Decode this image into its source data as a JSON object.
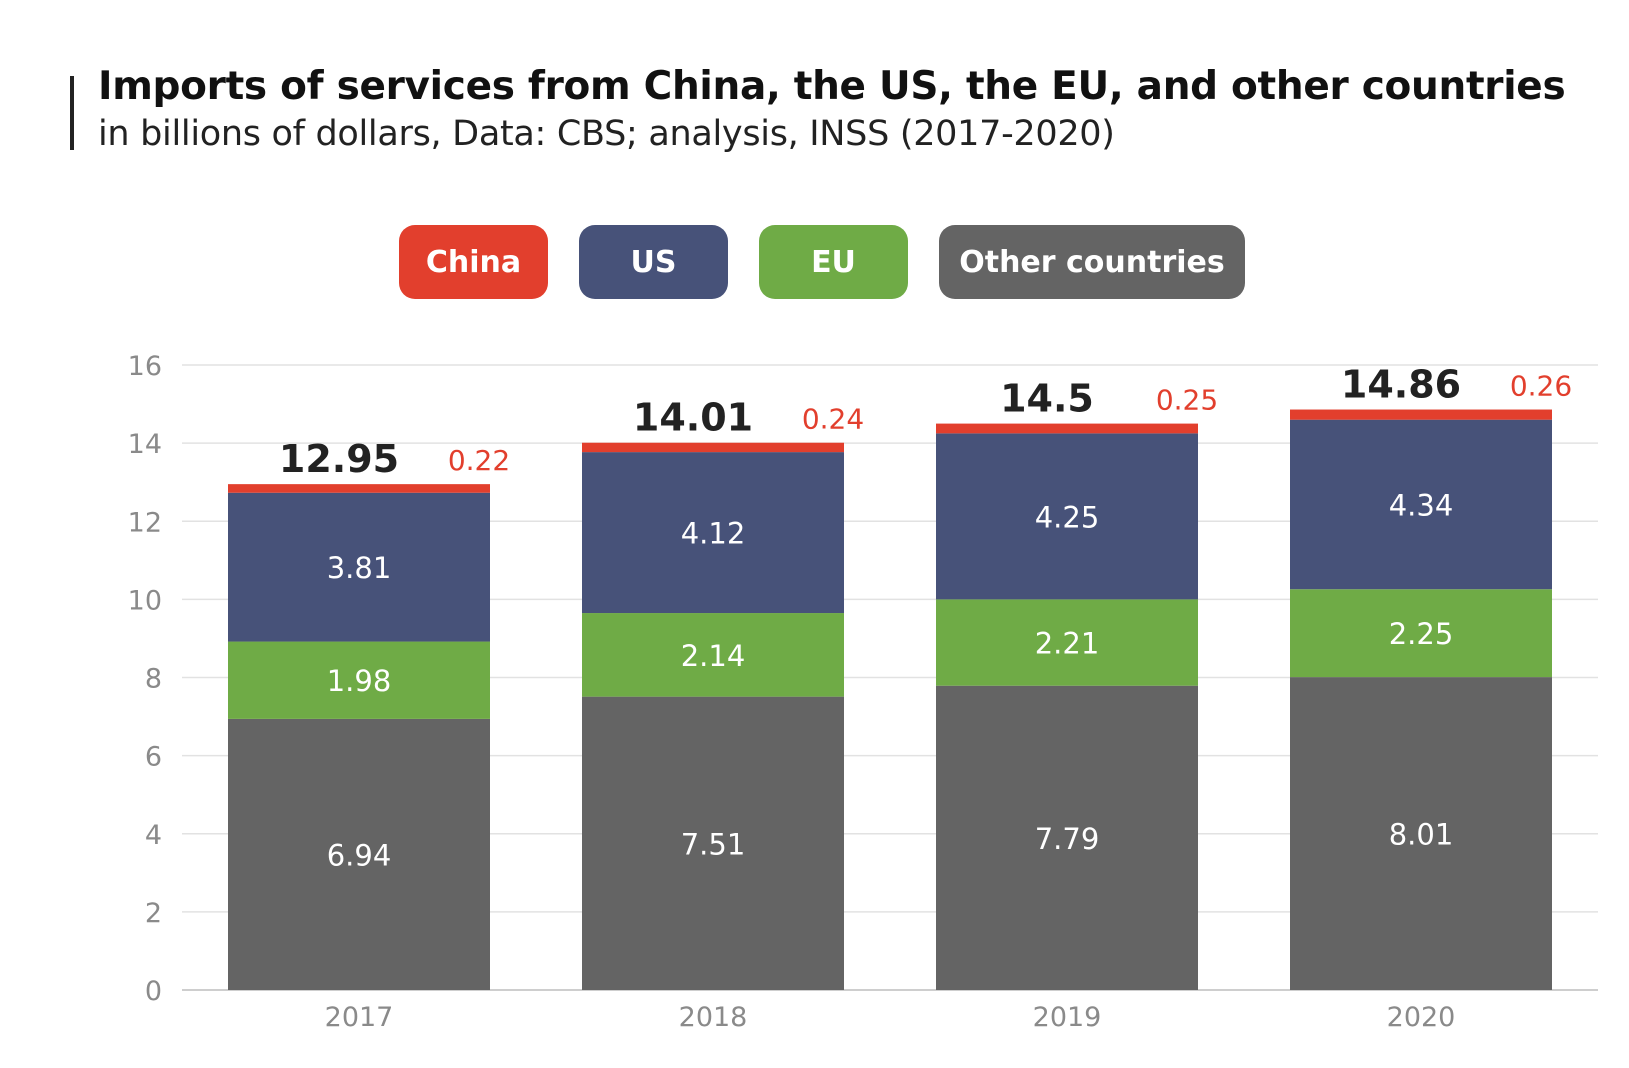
{
  "title": "Imports of services from China, the US, the EU, and other countries",
  "subtitle": "in billions of dollars, Data: CBS; analysis, INSS (2017-2020)",
  "legend": [
    "China",
    "US",
    "EU",
    "Other countries"
  ],
  "colors": {
    "China": "#e23f2d",
    "US": "#475279",
    "EU": "#6fab46",
    "Other countries": "#646464"
  },
  "chart_data": {
    "type": "bar",
    "stacked": true,
    "categories": [
      "2017",
      "2018",
      "2019",
      "2020"
    ],
    "series": [
      {
        "name": "Other countries",
        "values": [
          6.94,
          7.51,
          7.79,
          8.01
        ]
      },
      {
        "name": "EU",
        "values": [
          1.98,
          2.14,
          2.21,
          2.25
        ]
      },
      {
        "name": "US",
        "values": [
          3.81,
          4.12,
          4.25,
          4.34
        ]
      },
      {
        "name": "China",
        "values": [
          0.22,
          0.24,
          0.25,
          0.26
        ]
      }
    ],
    "totals": [
      "12.95",
      "14.01",
      "14.5",
      "14.86"
    ],
    "ylim": [
      0,
      16
    ],
    "yticks": [
      0,
      2,
      4,
      6,
      8,
      10,
      12,
      14,
      16
    ],
    "grid": true,
    "legend_position": "top"
  }
}
